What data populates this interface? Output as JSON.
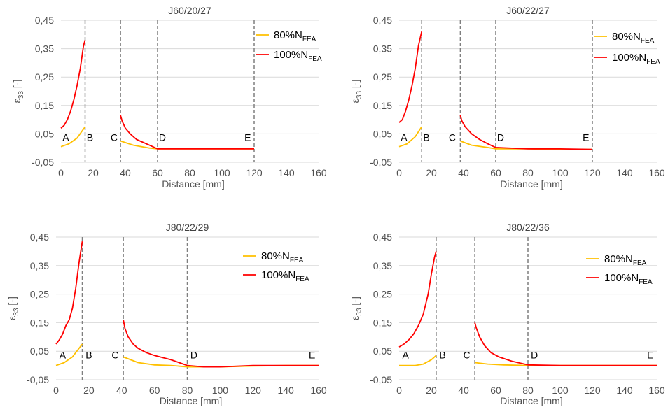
{
  "legend": {
    "series": [
      {
        "main": "80%N",
        "sub": "FEA",
        "color": "#FFC000"
      },
      {
        "main": "100%N",
        "sub": "FEA",
        "color": "#FF0000"
      }
    ]
  },
  "axes": {
    "xlabel": "Distance [mm]",
    "ylabel_main": "ε",
    "ylabel_sub": "33",
    "ylabel_suffix": " [-]",
    "xticks": [
      "0",
      "20",
      "40",
      "60",
      "80",
      "100",
      "120",
      "140",
      "160"
    ],
    "yticks": [
      "-0,05",
      "0,05",
      "0,15",
      "0,25",
      "0,35",
      "0,45"
    ]
  },
  "chart_data": [
    {
      "type": "line",
      "title": "J60/20/27",
      "xlim": [
        0,
        160
      ],
      "ylim": [
        -0.05,
        0.45
      ],
      "grid": true,
      "legend_position": "top-right",
      "vlines": [
        15,
        37,
        60,
        120
      ],
      "labels": [
        {
          "text": "A",
          "x": 3
        },
        {
          "text": "B",
          "x": 18
        },
        {
          "text": "C",
          "x": 33
        },
        {
          "text": "D",
          "x": 63
        },
        {
          "text": "E",
          "x": 116
        }
      ],
      "series": [
        {
          "name": "80%NFEA",
          "segments": [
            [
              [
                0,
                0.005
              ],
              [
                5,
                0.015
              ],
              [
                10,
                0.035
              ],
              [
                15,
                0.075
              ]
            ],
            [
              [
                37,
                0.025
              ],
              [
                45,
                0.01
              ],
              [
                55,
                0.0
              ],
              [
                60,
                -0.003
              ],
              [
                80,
                -0.003
              ],
              [
                100,
                -0.003
              ],
              [
                120,
                -0.003
              ]
            ]
          ]
        },
        {
          "name": "100%NFEA",
          "segments": [
            [
              [
                0,
                0.07
              ],
              [
                2,
                0.08
              ],
              [
                4,
                0.1
              ],
              [
                6,
                0.13
              ],
              [
                8,
                0.17
              ],
              [
                10,
                0.22
              ],
              [
                12,
                0.28
              ],
              [
                14,
                0.36
              ],
              [
                15,
                0.38
              ]
            ],
            [
              [
                37,
                0.115
              ],
              [
                38,
                0.095
              ],
              [
                40,
                0.07
              ],
              [
                43,
                0.05
              ],
              [
                47,
                0.03
              ],
              [
                53,
                0.015
              ],
              [
                57,
                0.005
              ],
              [
                60,
                -0.003
              ],
              [
                80,
                -0.003
              ],
              [
                100,
                -0.003
              ],
              [
                120,
                -0.003
              ]
            ]
          ]
        }
      ]
    },
    {
      "type": "line",
      "title": "J60/22/27",
      "xlim": [
        0,
        160
      ],
      "ylim": [
        -0.05,
        0.45
      ],
      "grid": true,
      "legend_position": "top-right",
      "vlines": [
        14,
        38,
        60,
        120
      ],
      "labels": [
        {
          "text": "A",
          "x": 3
        },
        {
          "text": "B",
          "x": 17
        },
        {
          "text": "C",
          "x": 33
        },
        {
          "text": "D",
          "x": 63
        },
        {
          "text": "E",
          "x": 116
        }
      ],
      "series": [
        {
          "name": "80%NFEA",
          "segments": [
            [
              [
                0,
                0.005
              ],
              [
                5,
                0.015
              ],
              [
                10,
                0.04
              ],
              [
                14,
                0.075
              ]
            ],
            [
              [
                38,
                0.025
              ],
              [
                45,
                0.01
              ],
              [
                55,
                0.002
              ],
              [
                60,
                -0.003
              ],
              [
                80,
                -0.003
              ],
              [
                100,
                -0.005
              ],
              [
                120,
                -0.005
              ]
            ]
          ]
        },
        {
          "name": "100%NFEA",
          "segments": [
            [
              [
                0,
                0.09
              ],
              [
                2,
                0.1
              ],
              [
                4,
                0.13
              ],
              [
                6,
                0.17
              ],
              [
                8,
                0.22
              ],
              [
                10,
                0.28
              ],
              [
                12,
                0.36
              ],
              [
                14,
                0.41
              ]
            ],
            [
              [
                38,
                0.115
              ],
              [
                39,
                0.095
              ],
              [
                41,
                0.075
              ],
              [
                45,
                0.05
              ],
              [
                50,
                0.03
              ],
              [
                55,
                0.015
              ],
              [
                60,
                0.002
              ],
              [
                80,
                -0.003
              ],
              [
                100,
                -0.003
              ],
              [
                120,
                -0.005
              ]
            ]
          ]
        }
      ]
    },
    {
      "type": "line",
      "title": "J80/22/29",
      "xlim": [
        0,
        160
      ],
      "ylim": [
        -0.05,
        0.45
      ],
      "grid": true,
      "legend_position": "top-right",
      "vlines": [
        16,
        41,
        80
      ],
      "labels": [
        {
          "text": "A",
          "x": 4
        },
        {
          "text": "B",
          "x": 20
        },
        {
          "text": "C",
          "x": 36
        },
        {
          "text": "D",
          "x": 84
        },
        {
          "text": "E",
          "x": 156
        }
      ],
      "series": [
        {
          "name": "80%NFEA",
          "segments": [
            [
              [
                0,
                0.0
              ],
              [
                5,
                0.01
              ],
              [
                10,
                0.03
              ],
              [
                16,
                0.075
              ]
            ],
            [
              [
                41,
                0.03
              ],
              [
                50,
                0.01
              ],
              [
                60,
                0.002
              ],
              [
                70,
                0.0
              ],
              [
                80,
                -0.005
              ],
              [
                100,
                -0.005
              ],
              [
                120,
                -0.002
              ],
              [
                140,
                0.0
              ],
              [
                160,
                0.0
              ]
            ]
          ]
        },
        {
          "name": "100%NFEA",
          "segments": [
            [
              [
                0,
                0.075
              ],
              [
                2,
                0.09
              ],
              [
                4,
                0.11
              ],
              [
                6,
                0.14
              ],
              [
                8,
                0.16
              ],
              [
                10,
                0.2
              ],
              [
                12,
                0.27
              ],
              [
                14,
                0.36
              ],
              [
                16,
                0.435
              ]
            ],
            [
              [
                41,
                0.16
              ],
              [
                42,
                0.13
              ],
              [
                44,
                0.1
              ],
              [
                47,
                0.075
              ],
              [
                50,
                0.06
              ],
              [
                55,
                0.045
              ],
              [
                60,
                0.035
              ],
              [
                70,
                0.02
              ],
              [
                80,
                0.0
              ],
              [
                90,
                -0.005
              ],
              [
                100,
                -0.005
              ],
              [
                120,
                0.0
              ],
              [
                140,
                0.0
              ],
              [
                160,
                0.0
              ]
            ]
          ]
        }
      ]
    },
    {
      "type": "line",
      "title": "J80/22/36",
      "xlim": [
        0,
        160
      ],
      "ylim": [
        -0.05,
        0.45
      ],
      "grid": true,
      "legend_position": "top-right",
      "vlines": [
        23,
        47,
        80
      ],
      "labels": [
        {
          "text": "A",
          "x": 4
        },
        {
          "text": "B",
          "x": 27
        },
        {
          "text": "C",
          "x": 42
        },
        {
          "text": "D",
          "x": 84
        },
        {
          "text": "E",
          "x": 156
        }
      ],
      "series": [
        {
          "name": "80%NFEA",
          "segments": [
            [
              [
                0,
                0.0
              ],
              [
                10,
                0.0
              ],
              [
                15,
                0.005
              ],
              [
                20,
                0.02
              ],
              [
                23,
                0.035
              ]
            ],
            [
              [
                47,
                0.01
              ],
              [
                55,
                0.005
              ],
              [
                65,
                0.002
              ],
              [
                80,
                0.0
              ],
              [
                100,
                0.0
              ],
              [
                120,
                0.0
              ],
              [
                160,
                0.0
              ]
            ]
          ]
        },
        {
          "name": "100%NFEA",
          "segments": [
            [
              [
                0,
                0.065
              ],
              [
                3,
                0.075
              ],
              [
                6,
                0.09
              ],
              [
                9,
                0.11
              ],
              [
                12,
                0.14
              ],
              [
                15,
                0.18
              ],
              [
                18,
                0.25
              ],
              [
                20,
                0.32
              ],
              [
                22,
                0.38
              ],
              [
                23,
                0.4
              ]
            ],
            [
              [
                47,
                0.15
              ],
              [
                48,
                0.13
              ],
              [
                50,
                0.1
              ],
              [
                53,
                0.07
              ],
              [
                57,
                0.045
              ],
              [
                62,
                0.03
              ],
              [
                70,
                0.015
              ],
              [
                80,
                0.002
              ],
              [
                100,
                0.0
              ],
              [
                120,
                0.0
              ],
              [
                160,
                0.0
              ]
            ]
          ]
        }
      ]
    }
  ]
}
